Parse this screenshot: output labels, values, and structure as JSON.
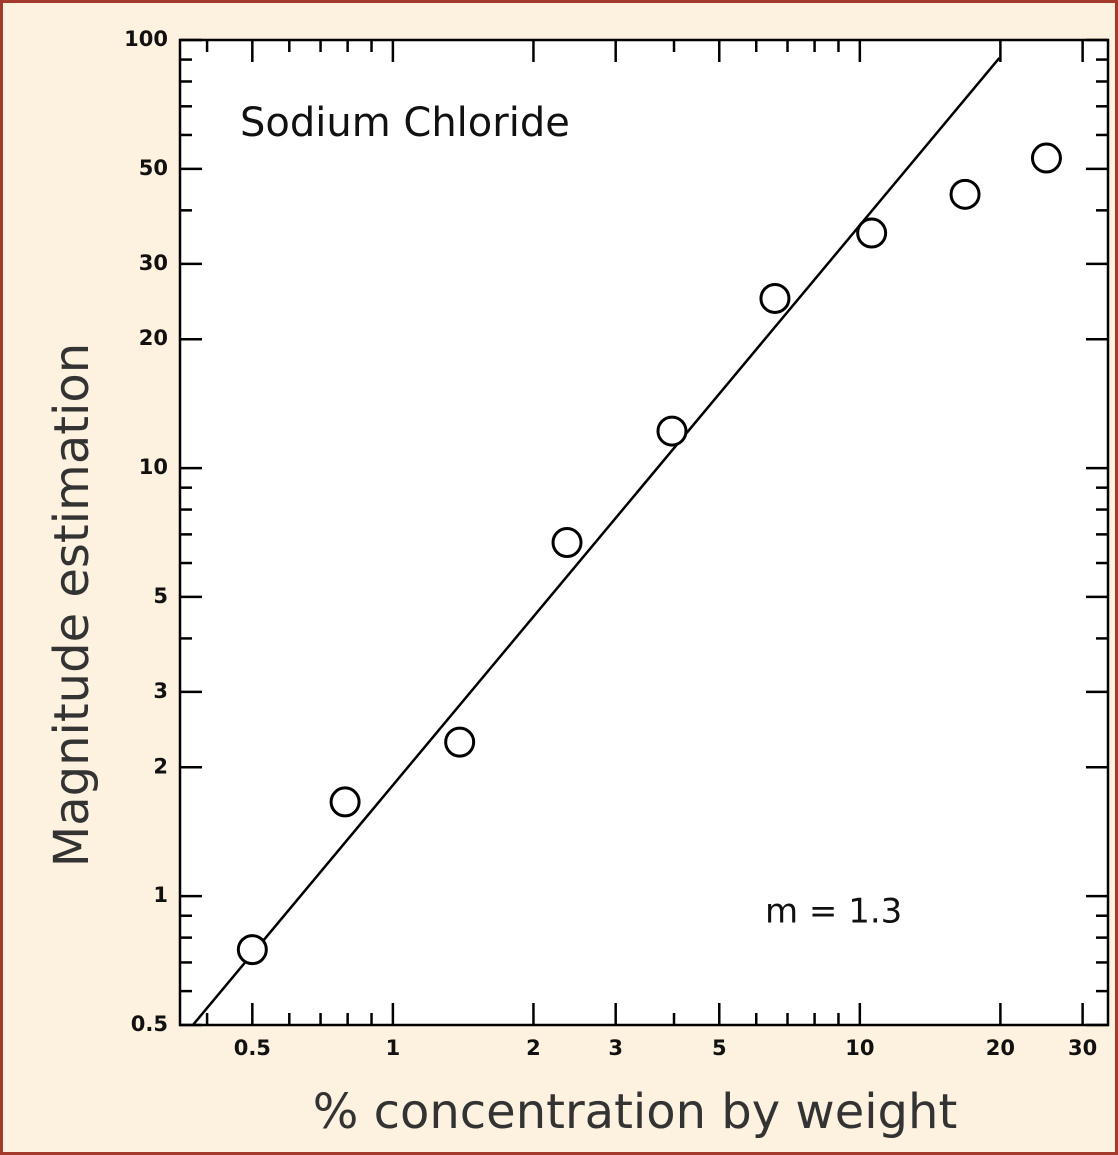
{
  "chart_data": {
    "type": "scatter",
    "annotations": [
      "Sodium Chloride",
      "m = 1.3"
    ],
    "x_label": "% concentration by weight",
    "y_label": "Magnitude  estimation",
    "x": [
      0.5,
      0.79,
      1.39,
      2.36,
      3.96,
      6.58,
      10.6,
      16.8,
      25.1
    ],
    "values": [
      0.75,
      1.66,
      2.29,
      6.7,
      12.2,
      24.9,
      35.4,
      43.6,
      53.0
    ],
    "color": "#000000",
    "fit_line": {
      "x": [
        0.373,
        19.9
      ],
      "y": [
        0.5,
        90.8
      ]
    },
    "xlog": true,
    "ylog": true,
    "xlim": [
      0.35,
      34
    ],
    "ylim": [
      0.5,
      100
    ],
    "xticks": [
      0.5,
      1,
      2,
      3,
      5,
      10,
      20,
      30
    ],
    "yticks": [
      0.5,
      1,
      2,
      3,
      5,
      10,
      20,
      30,
      50,
      100
    ],
    "xminorticks": [
      0.4,
      0.6,
      0.7,
      0.8,
      0.9,
      4,
      6,
      7,
      8,
      9
    ],
    "yminorticks": [
      0.6,
      0.7,
      0.8,
      0.9,
      4,
      6,
      7,
      8,
      9,
      40,
      60,
      70,
      80,
      90
    ],
    "grid": false
  }
}
